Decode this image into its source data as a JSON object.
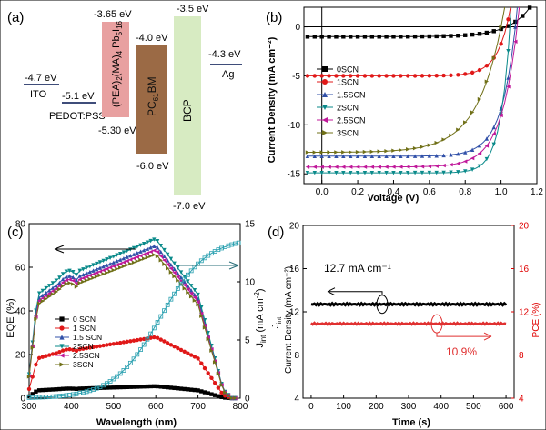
{
  "panel_labels": {
    "a": "(a)",
    "b": "(b)",
    "c": "(c)",
    "d": "(d)"
  },
  "colors": {
    "ito_line": "#3f4d7a",
    "pedot_line": "#3f4d7a",
    "ag_line": "#3f4d7a",
    "perovskite": "#e8a0a0",
    "pcbm": "#9b6a45",
    "bcp": "#d7ebc2",
    "pce_axis": "#e00000"
  },
  "chart_data": [
    {
      "type": "diagram",
      "panel": "(a)",
      "levels": {
        "ito": {
          "label": "ITO",
          "energy": "-4.7 eV"
        },
        "pedot": {
          "label": "PEDOT:PSS",
          "energy": "-5.1 eV"
        },
        "perovskite": {
          "label": "(PEA)2(MA)4 Pb5I16",
          "top": "-3.65 eV",
          "bottom": "-5.30 eV"
        },
        "pcbm": {
          "label": "PC61BM",
          "top": "-4.0 eV",
          "bottom": "-6.0 eV"
        },
        "bcp": {
          "label": "BCP",
          "top": "-3.5 eV",
          "bottom": "-7.0 eV"
        },
        "ag": {
          "label": "Ag",
          "energy": "-4.3 eV"
        }
      }
    },
    {
      "type": "line",
      "panel": "(b)",
      "xlabel": "Voltage (V)",
      "ylabel": "Current Density (mA cm⁻²)",
      "xlim": [
        -0.1,
        1.2
      ],
      "ylim": [
        -16,
        2
      ],
      "xticks": [
        "0.0",
        "0.2",
        "0.4",
        "0.6",
        "0.8",
        "1.0",
        "1.2"
      ],
      "yticks": [
        "0",
        "-5",
        "-10",
        "-15"
      ],
      "series": [
        {
          "name": "0SCN",
          "color": "#000000",
          "marker": "square",
          "jsc": -1.0,
          "voc": 1.03,
          "n": 0.12
        },
        {
          "name": "1SCN",
          "color": "#e01818",
          "marker": "circle",
          "jsc": -5.0,
          "voc": 1.03,
          "n": 0.07
        },
        {
          "name": "1.5SCN",
          "color": "#3050a8",
          "marker": "triangle-up",
          "jsc": -13.2,
          "voc": 1.08,
          "n": 0.08
        },
        {
          "name": "2SCN",
          "color": "#0a8a8a",
          "marker": "triangle-down",
          "jsc": -14.9,
          "voc": 1.05,
          "n": 0.055
        },
        {
          "name": "2.5SCN",
          "color": "#c0189a",
          "marker": "triangle-left",
          "jsc": -14.3,
          "voc": 1.09,
          "n": 0.09
        },
        {
          "name": "3SCN",
          "color": "#707018",
          "marker": "triangle-right",
          "jsc": -12.8,
          "voc": 1.0,
          "n": 0.14
        }
      ]
    },
    {
      "type": "line",
      "panel": "(c)",
      "xlabel": "Wavelength (nm)",
      "ylabel": "EQE (%)",
      "y2label": "Jint (mA cm⁻²)",
      "xlim": [
        300,
        800
      ],
      "ylim": [
        0,
        80
      ],
      "y2lim": [
        0,
        15
      ],
      "xticks": [
        "300",
        "400",
        "500",
        "600",
        "700",
        "800"
      ],
      "yticks": [
        "0",
        "20",
        "40",
        "60",
        "80"
      ],
      "y2ticks": [
        "0",
        "5",
        "10",
        "15"
      ],
      "series": [
        {
          "name": "0 SCN",
          "color": "#000000",
          "marker": "square",
          "peak": 5.5
        },
        {
          "name": "1 SCN",
          "color": "#e01818",
          "marker": "circle",
          "peak": 28
        },
        {
          "name": "1.5 SCN",
          "color": "#3050a8",
          "marker": "triangle-up",
          "peak": 70
        },
        {
          "name": "2SCN",
          "color": "#0a8a8a",
          "marker": "triangle-down",
          "peak": 73
        },
        {
          "name": "2.5SCN",
          "color": "#c0189a",
          "marker": "triangle-left",
          "peak": 68
        },
        {
          "name": "3SCN",
          "color": "#707018",
          "marker": "triangle-right",
          "peak": 66
        }
      ],
      "integrated": {
        "color": "#2aa0b0",
        "final": 13.8
      }
    },
    {
      "type": "line",
      "panel": "(d)",
      "xlabel": "Time (s)",
      "ylabel": "Current Density (mA cm⁻²)",
      "y2label": "PCE (%)",
      "xlim": [
        -25,
        625
      ],
      "ylim": [
        4,
        20
      ],
      "y2lim": [
        4,
        20
      ],
      "xticks": [
        "0",
        "100",
        "200",
        "300",
        "400",
        "500",
        "600"
      ],
      "yticks": [
        "4",
        "8",
        "12",
        "16",
        "20"
      ],
      "y2ticks": [
        "4",
        "8",
        "12",
        "16",
        "20"
      ],
      "series": [
        {
          "name": "Current Density",
          "color": "#000000",
          "value": 12.7
        },
        {
          "name": "PCE",
          "color": "#e03030",
          "value": 10.9
        }
      ],
      "annotations": {
        "current": "12.7 mA cm⁻¹",
        "pce": "10.9%"
      }
    }
  ]
}
